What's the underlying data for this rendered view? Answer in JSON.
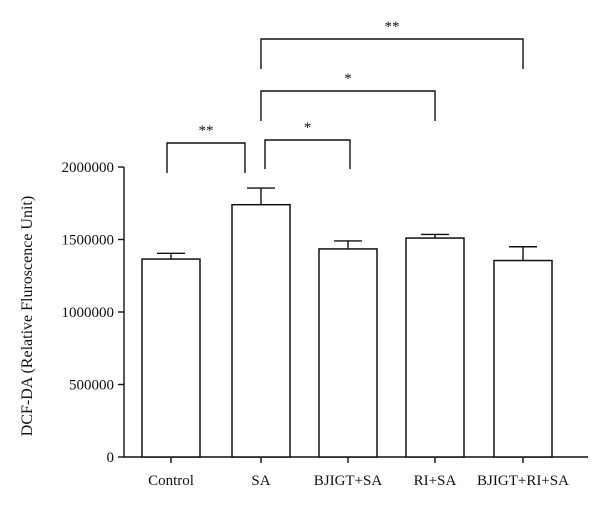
{
  "chart_data": {
    "type": "bar",
    "title": "",
    "xlabel": "",
    "ylabel": "DCF-DA (Relative Fluroscence Unit)",
    "ylim": [
      0,
      2000000
    ],
    "yticks": [
      0,
      500000,
      1000000,
      1500000,
      2000000
    ],
    "ytick_labels": [
      "0",
      "500000",
      "1000000",
      "1500000",
      "2000000"
    ],
    "categories": [
      "Control",
      "SA",
      "BJIGT+SA",
      "RI+SA",
      "BJIGT+RI+SA"
    ],
    "values": [
      1365000,
      1740000,
      1435000,
      1510000,
      1355000
    ],
    "errors": [
      40000,
      115000,
      55000,
      25000,
      95000
    ],
    "grid": false,
    "significance": [
      {
        "from": 0,
        "to": 1,
        "label": "**"
      },
      {
        "from": 1,
        "to": 2,
        "label": "*"
      },
      {
        "from": 1,
        "to": 3,
        "label": "*"
      },
      {
        "from": 1,
        "to": 4,
        "label": "**"
      }
    ]
  }
}
